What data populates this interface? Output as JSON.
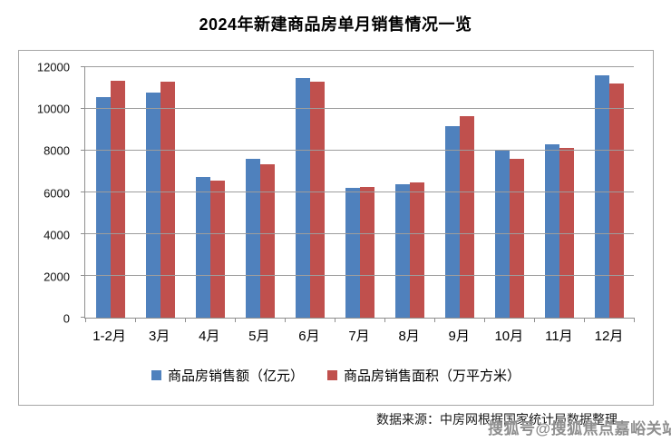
{
  "page": {
    "title": "2024年新建商品房单月销售情况一览"
  },
  "footer": {
    "source": "数据来源：中房网根据国家统计局数据整理"
  },
  "watermark": {
    "text": "搜狐号@搜狐焦点嘉峪关站"
  },
  "colors": {
    "series_sales_blue": "#4F81BD",
    "series_area_red": "#C0504D",
    "gridline": "#9d9d9d",
    "axis": "#8e8e8e",
    "frame_border": "#a6a6a6"
  },
  "chart_data": {
    "type": "bar",
    "title": "2024年新建商品房单月销售情况一览",
    "categories": [
      "1-2月",
      "3月",
      "4月",
      "5月",
      "6月",
      "7月",
      "8月",
      "9月",
      "10月",
      "11月",
      "12月"
    ],
    "series": [
      {
        "name": "商品房销售额（亿元）",
        "color": "#4F81BD",
        "values": [
          10550,
          10780,
          6720,
          7610,
          11460,
          6200,
          6390,
          9160,
          7990,
          8320,
          11620
        ]
      },
      {
        "name": "商品房销售面积（万平方米）",
        "color": "#C0504D",
        "values": [
          11360,
          11290,
          6580,
          7360,
          11300,
          6250,
          6480,
          9650,
          7620,
          8150,
          11230
        ]
      }
    ],
    "xlabel": "",
    "ylabel": "",
    "ylim": [
      0,
      12000
    ],
    "yticks": [
      0,
      2000,
      4000,
      6000,
      8000,
      10000,
      12000
    ],
    "grid": true,
    "legend_position": "bottom"
  }
}
